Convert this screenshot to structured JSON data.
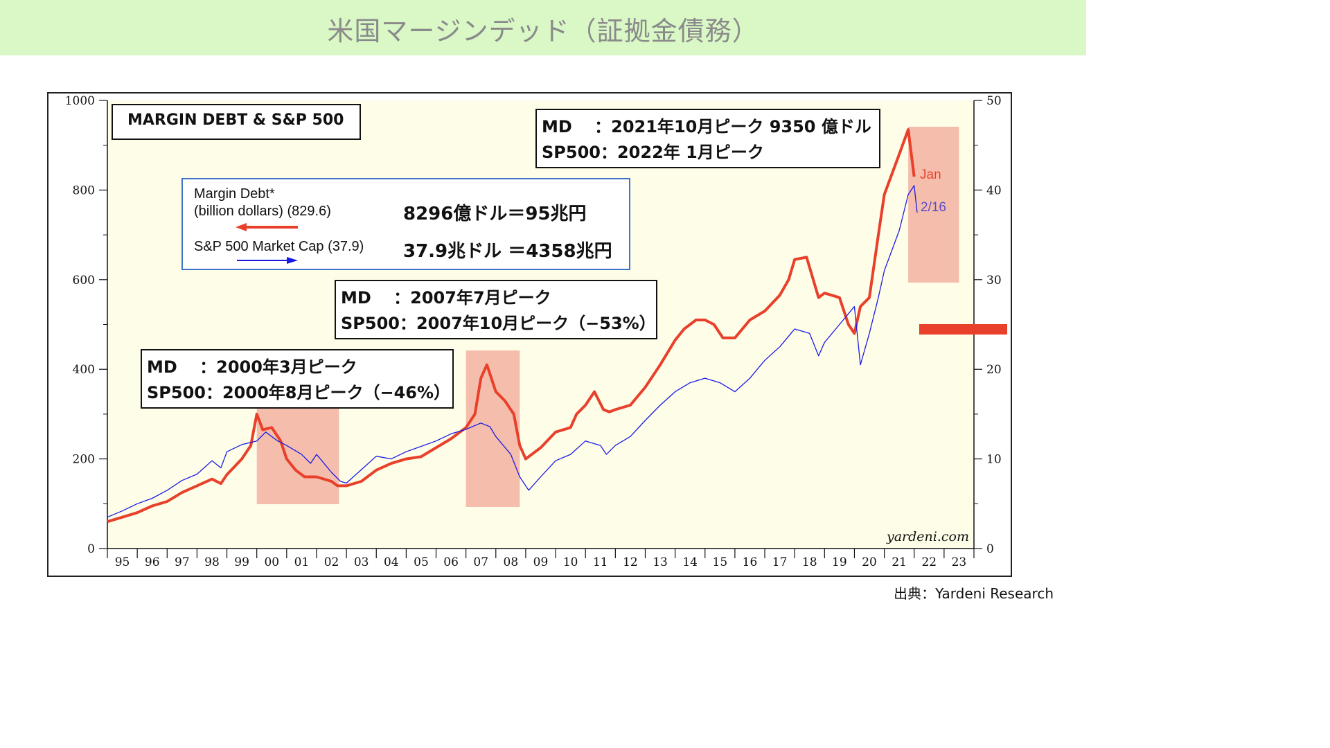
{
  "page": {
    "title": "米国マージンデッド（証拠金債務）",
    "source": "出典：Yardeni Research"
  },
  "colors": {
    "title_bar": "#d9f8c6",
    "plot_bg": "#fefde8",
    "margin_debt": "#e8402a",
    "sp500": "#1a1ae6",
    "highlight": "#f4b7a5",
    "marker": "#e8402a",
    "legend_border": "#3f75c4"
  },
  "chart": {
    "title": "MARGIN DEBT & S&P 500",
    "watermark": "yardeni.com",
    "legend": {
      "md_line1": "Margin Debt*",
      "md_line2": "(billion dollars) (829.6)",
      "sp_line": "S&P 500 Market Cap (37.9)",
      "md_conversion": "8296億ドル＝95兆円",
      "sp_conversion": "37.9兆ドル ＝4358兆円"
    },
    "annotations": {
      "peak_2021_md": "MD　 ：2021年10月ピーク 9350 億ドル",
      "peak_2021_sp": "SP500：2022年  1月ピーク",
      "peak_2007_md": "MD　 ：2007年7月ピーク",
      "peak_2007_sp": "SP500：2007年10月ピーク（−53%）",
      "peak_2000_md": "MD　 ：2000年3月ピーク",
      "peak_2000_sp": "SP500：2000年8月ピーク（−46%）",
      "jan_label": "Jan",
      "feb_label": "2/16"
    }
  },
  "chart_data": {
    "type": "line",
    "title": "MARGIN DEBT & S&P 500",
    "x_tick_labels": [
      "95",
      "96",
      "97",
      "98",
      "99",
      "00",
      "01",
      "02",
      "03",
      "04",
      "05",
      "06",
      "07",
      "08",
      "09",
      "10",
      "11",
      "12",
      "13",
      "14",
      "15",
      "16",
      "17",
      "18",
      "19",
      "20",
      "21",
      "22",
      "23"
    ],
    "xlim": [
      1995,
      2024
    ],
    "left_axis": {
      "ylim": [
        0,
        1000
      ],
      "ticks": [
        0,
        200,
        400,
        600,
        800,
        1000
      ]
    },
    "right_axis": {
      "ylim": [
        0,
        50
      ],
      "ticks": [
        0,
        10,
        20,
        30,
        40,
        50
      ]
    },
    "series": [
      {
        "name": "Margin Debt*",
        "axis": "left",
        "x": [
          1995.0,
          1995.5,
          1996.0,
          1996.5,
          1997.0,
          1997.5,
          1998.0,
          1998.5,
          1998.8,
          1999.0,
          1999.5,
          1999.8,
          2000.0,
          2000.2,
          2000.5,
          2000.8,
          2001.0,
          2001.3,
          2001.6,
          2002.0,
          2002.5,
          2002.7,
          2003.0,
          2003.5,
          2004.0,
          2004.5,
          2005.0,
          2005.5,
          2006.0,
          2006.5,
          2007.0,
          2007.3,
          2007.5,
          2007.7,
          2008.0,
          2008.3,
          2008.6,
          2008.8,
          2009.0,
          2009.5,
          2010.0,
          2010.5,
          2010.7,
          2011.0,
          2011.3,
          2011.6,
          2011.8,
          2012.0,
          2012.5,
          2013.0,
          2013.5,
          2014.0,
          2014.3,
          2014.7,
          2015.0,
          2015.3,
          2015.6,
          2016.0,
          2016.5,
          2017.0,
          2017.5,
          2017.8,
          2018.0,
          2018.4,
          2018.8,
          2019.0,
          2019.5,
          2019.8,
          2020.0,
          2020.2,
          2020.5,
          2020.8,
          2021.0,
          2021.5,
          2021.8,
          2022.0
        ],
        "values": [
          60,
          70,
          80,
          95,
          105,
          125,
          140,
          155,
          145,
          165,
          200,
          230,
          300,
          265,
          270,
          240,
          200,
          175,
          160,
          160,
          150,
          140,
          140,
          150,
          175,
          190,
          200,
          205,
          225,
          245,
          270,
          300,
          380,
          410,
          350,
          330,
          300,
          230,
          200,
          225,
          260,
          270,
          300,
          320,
          350,
          310,
          305,
          310,
          320,
          360,
          410,
          465,
          490,
          510,
          510,
          500,
          470,
          470,
          510,
          530,
          565,
          600,
          645,
          650,
          560,
          570,
          560,
          500,
          480,
          540,
          560,
          700,
          790,
          880,
          935,
          830
        ]
      },
      {
        "name": "S&P 500 Market Cap",
        "axis": "right",
        "x": [
          1995.0,
          1995.5,
          1996.0,
          1996.5,
          1997.0,
          1997.5,
          1998.0,
          1998.5,
          1998.8,
          1999.0,
          1999.5,
          2000.0,
          2000.3,
          2000.7,
          2001.0,
          2001.5,
          2001.8,
          2002.0,
          2002.5,
          2002.8,
          2003.0,
          2003.5,
          2004.0,
          2004.5,
          2005.0,
          2005.5,
          2006.0,
          2006.5,
          2007.0,
          2007.5,
          2007.8,
          2008.0,
          2008.5,
          2008.8,
          2009.1,
          2009.5,
          2010.0,
          2010.5,
          2011.0,
          2011.5,
          2011.7,
          2012.0,
          2012.5,
          2013.0,
          2013.5,
          2014.0,
          2014.5,
          2015.0,
          2015.5,
          2016.0,
          2016.5,
          2017.0,
          2017.5,
          2018.0,
          2018.5,
          2018.8,
          2019.0,
          2019.5,
          2020.0,
          2020.2,
          2020.5,
          2020.8,
          2021.0,
          2021.5,
          2021.8,
          2022.0,
          2022.1
        ],
        "values": [
          3.5,
          4.2,
          5.0,
          5.6,
          6.5,
          7.6,
          8.3,
          9.8,
          9.0,
          10.8,
          11.6,
          12.0,
          13.0,
          12.0,
          11.5,
          10.5,
          9.5,
          10.5,
          8.5,
          7.5,
          7.3,
          8.8,
          10.3,
          10.0,
          10.8,
          11.4,
          12.0,
          12.8,
          13.3,
          14.0,
          13.6,
          12.5,
          10.5,
          8.0,
          6.5,
          8.0,
          9.8,
          10.5,
          12.0,
          11.5,
          10.5,
          11.5,
          12.5,
          14.3,
          16.0,
          17.5,
          18.5,
          19.0,
          18.5,
          17.5,
          19.0,
          21.0,
          22.5,
          24.5,
          24.0,
          21.5,
          23.0,
          25.0,
          27.0,
          20.5,
          24.0,
          28.0,
          31.0,
          35.5,
          39.5,
          40.5,
          37.5
        ]
      }
    ],
    "highlight_periods": [
      [
        2000.0,
        2002.75
      ],
      [
        2007.0,
        2008.8
      ],
      [
        2021.8,
        2023.5
      ]
    ]
  }
}
